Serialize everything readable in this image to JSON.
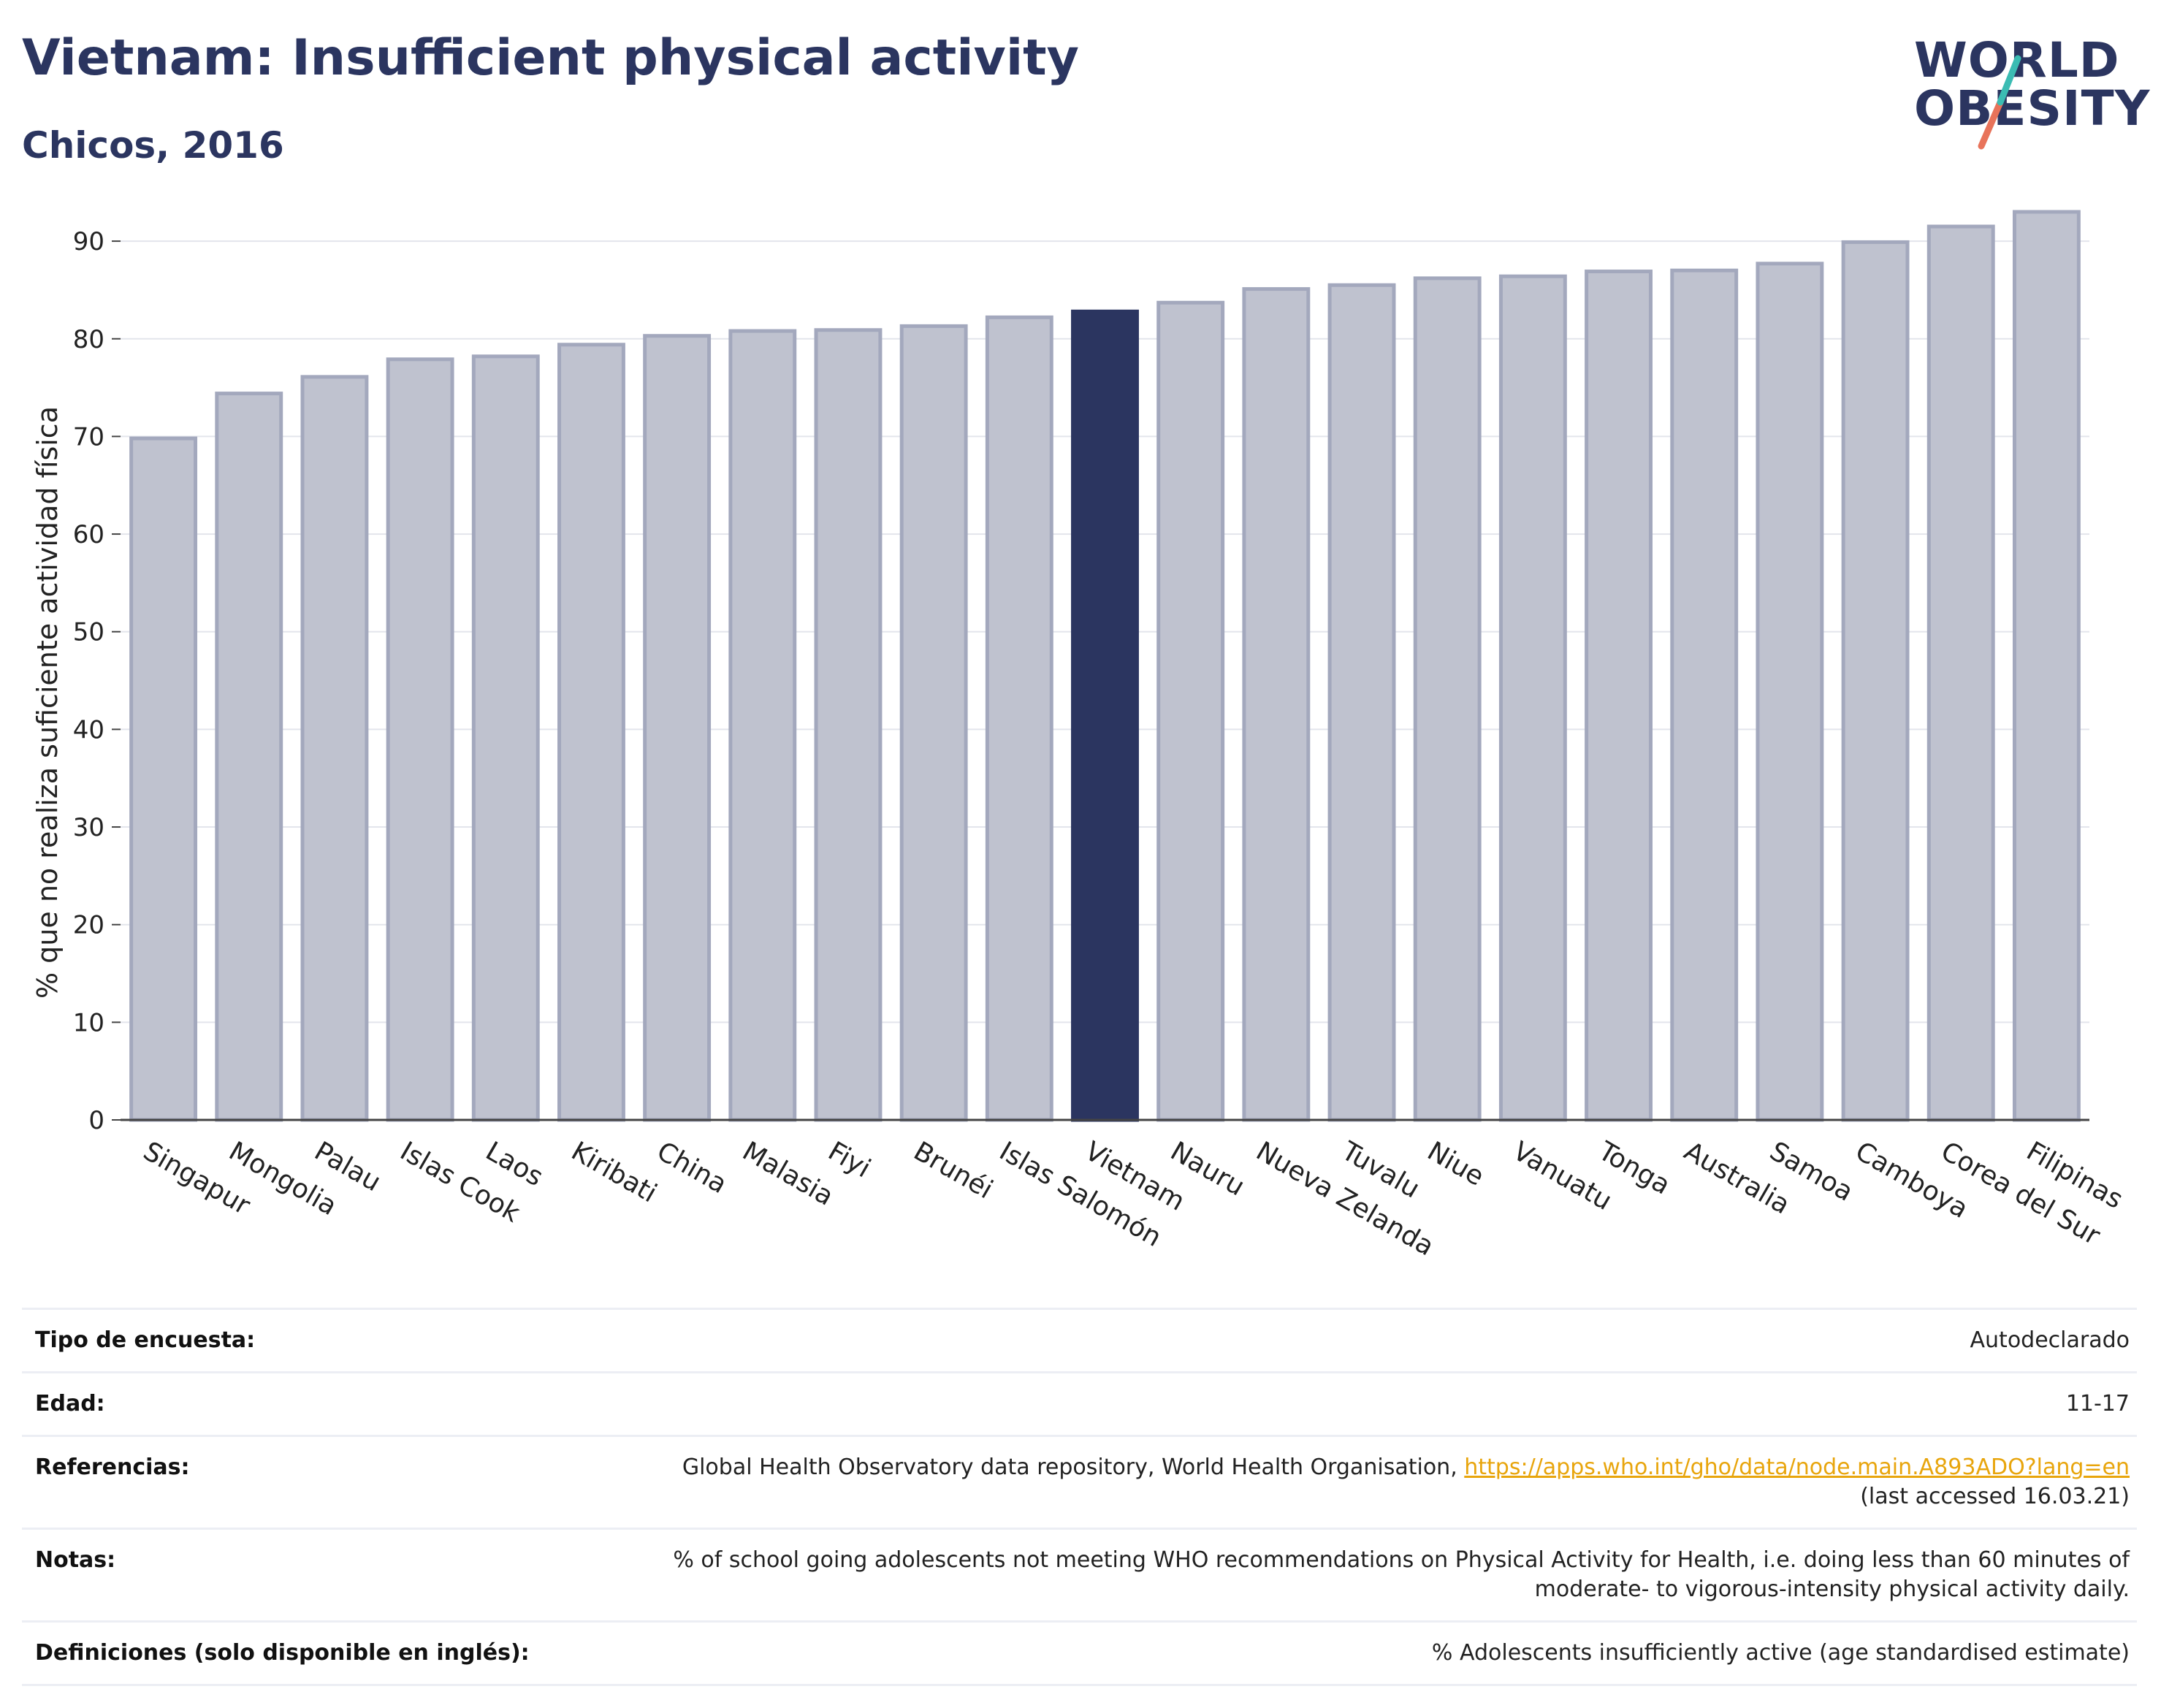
{
  "header": {
    "title": "Vietnam: Insufficient physical activity",
    "subtitle": "Chicos, 2016"
  },
  "logo": {
    "line1": "WORLD",
    "line2": "OBESITY"
  },
  "chart_data": {
    "type": "bar",
    "ylabel": "% que no realiza suficiente actividad física",
    "ylim": [
      0,
      93
    ],
    "yticks": [
      0,
      10,
      20,
      30,
      40,
      50,
      60,
      70,
      80,
      90
    ],
    "grid": true,
    "highlight": "Vietnam",
    "colors": {
      "bar": "#bfc2cf",
      "bar_edge": "#a3a8bd",
      "highlight": "#2b3560",
      "grid": "#e3e5ec",
      "axis": "#444444"
    },
    "categories": [
      "Singapur",
      "Mongolia",
      "Palau",
      "Islas Cook",
      "Laos",
      "Kiribati",
      "China",
      "Malasia",
      "Fiyi",
      "Brunéi",
      "Islas Salomón",
      "Vietnam",
      "Nauru",
      "Nueva Zelanda",
      "Tuvalu",
      "Niue",
      "Vanuatu",
      "Tonga",
      "Australia",
      "Samoa",
      "Camboya",
      "Corea del Sur",
      "Filipinas"
    ],
    "values": [
      69.8,
      74.4,
      76.1,
      77.9,
      78.2,
      79.4,
      80.3,
      80.8,
      80.9,
      81.3,
      82.2,
      82.8,
      83.7,
      85.1,
      85.5,
      86.2,
      86.4,
      86.9,
      87.0,
      87.7,
      89.9,
      91.5,
      93.0
    ]
  },
  "meta": {
    "rows": [
      {
        "key": "Tipo de encuesta:",
        "value": "Autodeclarado"
      },
      {
        "key": "Edad:",
        "value": "11-17"
      },
      {
        "key": "Referencias:",
        "value": "Global Health Observatory data repository, World Health Organisation, ",
        "link": "https://apps.who.int/gho/data/node.main.A893ADO?lang=en",
        "value2": "(last accessed 16.03.21)"
      },
      {
        "key": "Notas:",
        "value": "% of school going adolescents not meeting WHO recommendations on Physical Activity for Health, i.e. doing less than 60 minutes of",
        "value2": "moderate- to vigorous-intensity physical activity daily."
      },
      {
        "key": "Definiciones (solo disponible en inglés):",
        "value": "% Adolescents insufficiently active (age standardised estimate)"
      }
    ]
  }
}
